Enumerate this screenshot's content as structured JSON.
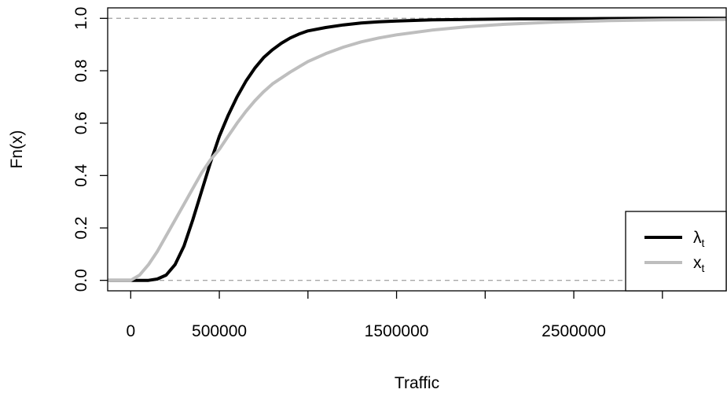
{
  "chart_data": {
    "type": "line",
    "title": "",
    "xlabel": "Traffic",
    "ylabel": "Fn(x)",
    "xlim": [
      -130000,
      3360000
    ],
    "ylim": [
      -0.04,
      1.04
    ],
    "x_ticks": [
      0,
      500000,
      1000000,
      1500000,
      2000000,
      2500000,
      3000000
    ],
    "x_tick_labels": [
      "0",
      "500000",
      "",
      "1500000",
      "",
      "2500000",
      ""
    ],
    "y_ticks": [
      0.0,
      0.2,
      0.4,
      0.6,
      0.8,
      1.0
    ],
    "y_tick_labels": [
      "0.0",
      "0.2",
      "0.4",
      "0.6",
      "0.8",
      "1.0"
    ],
    "reference_lines": [
      0,
      1
    ],
    "legend_position": "bottom-right",
    "series": [
      {
        "name": "λ",
        "subscript": "t",
        "color": "#000000",
        "x": [
          -130000,
          100000,
          150000,
          200000,
          250000,
          300000,
          350000,
          400000,
          450000,
          500000,
          550000,
          600000,
          650000,
          700000,
          750000,
          800000,
          850000,
          900000,
          950000,
          1000000,
          1100000,
          1200000,
          1300000,
          1400000,
          1500000,
          1700000,
          1900000,
          2200000,
          2600000,
          3000000,
          3360000
        ],
        "y": [
          0.0,
          0.0,
          0.005,
          0.02,
          0.06,
          0.13,
          0.23,
          0.34,
          0.45,
          0.55,
          0.63,
          0.7,
          0.76,
          0.81,
          0.85,
          0.88,
          0.905,
          0.925,
          0.94,
          0.952,
          0.965,
          0.975,
          0.982,
          0.987,
          0.99,
          0.994,
          0.996,
          0.998,
          0.999,
          1.0,
          1.0
        ]
      },
      {
        "name": "x",
        "subscript": "t",
        "color": "#bebebe",
        "x": [
          -130000,
          0,
          50000,
          100000,
          150000,
          200000,
          250000,
          300000,
          350000,
          400000,
          450000,
          500000,
          550000,
          600000,
          650000,
          700000,
          750000,
          800000,
          900000,
          1000000,
          1100000,
          1200000,
          1300000,
          1400000,
          1500000,
          1700000,
          1900000,
          2100000,
          2400000,
          2700000,
          3000000,
          3360000
        ],
        "y": [
          0.0,
          0.0,
          0.02,
          0.06,
          0.11,
          0.17,
          0.23,
          0.29,
          0.35,
          0.41,
          0.46,
          0.5,
          0.55,
          0.6,
          0.645,
          0.685,
          0.72,
          0.75,
          0.795,
          0.835,
          0.865,
          0.89,
          0.91,
          0.925,
          0.937,
          0.955,
          0.968,
          0.977,
          0.986,
          0.991,
          0.994,
          0.996
        ]
      }
    ]
  }
}
